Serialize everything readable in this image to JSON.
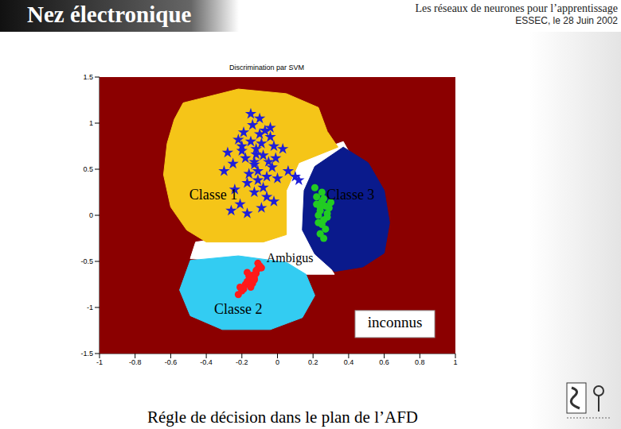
{
  "header": {
    "title": "Nez électronique",
    "subtitle": "Les réseaux de neurones pour l’apprentissage",
    "event": "ESSEC, le 28 Juin 2002"
  },
  "caption": "Régle de décision dans le plan de l’AFD",
  "chart_data": {
    "type": "scatter",
    "title": "Discrimination par SVM",
    "xlim": [
      -1,
      1
    ],
    "xticks": [
      -1,
      -0.8,
      -0.6,
      -0.4,
      -0.2,
      0,
      0.2,
      0.4,
      0.6,
      0.8,
      1
    ],
    "ylim": [
      -1.5,
      1.5
    ],
    "yticks": [
      -1.5,
      -1,
      -0.5,
      0,
      0.5,
      1,
      1.5
    ],
    "background": {
      "label": "inconnus",
      "color": "#8b0000"
    },
    "regions": [
      {
        "label": "Ambigus",
        "color": "#ffffff",
        "polygon": {
          "x": [
            0.1,
            0.37,
            0.41,
            0.23,
            0.19,
            0.32,
            0.14,
            -0.08,
            -0.35,
            -0.49,
            -0.46,
            0.01,
            0.03
          ],
          "y": [
            0.61,
            0.8,
            0.66,
            0.4,
            -0.25,
            -0.64,
            -0.64,
            -0.51,
            -0.49,
            -0.47,
            -0.29,
            -0.16,
            0.35
          ]
        }
      },
      {
        "label": "Classe 2",
        "color": "#33ccf2",
        "polygon": {
          "x": [
            -0.49,
            -0.22,
            0.05,
            0.16,
            0.21,
            0.14,
            -0.04,
            -0.31,
            -0.49,
            -0.55
          ],
          "y": [
            -0.49,
            -0.44,
            -0.51,
            -0.64,
            -0.87,
            -1.11,
            -1.24,
            -1.24,
            -1.09,
            -0.81
          ]
        },
        "points": {
          "color": "#ff1a1a",
          "marker": "circle",
          "x": [
            -0.1,
            -0.12,
            -0.14,
            -0.11,
            -0.16,
            -0.13,
            -0.18,
            -0.15,
            -0.2,
            -0.17,
            -0.12,
            -0.09,
            -0.22,
            -0.14,
            -0.19,
            -0.16,
            -0.11,
            -0.21,
            -0.13,
            -0.17
          ],
          "y": [
            -0.55,
            -0.6,
            -0.65,
            -0.58,
            -0.7,
            -0.68,
            -0.75,
            -0.78,
            -0.82,
            -0.72,
            -0.63,
            -0.57,
            -0.86,
            -0.74,
            -0.8,
            -0.66,
            -0.52,
            -0.78,
            -0.7,
            -0.62
          ]
        }
      },
      {
        "label": "Classe 1",
        "color": "#f5c518",
        "polygon": {
          "x": [
            -0.53,
            -0.22,
            0.05,
            0.23,
            0.28,
            0.34,
            0.12,
            0.05,
            0.05,
            -0.08,
            -0.4,
            -0.51,
            -0.6,
            -0.64,
            -0.62,
            -0.58
          ],
          "y": [
            1.22,
            1.37,
            1.32,
            1.17,
            0.91,
            0.74,
            0.57,
            0.27,
            -0.21,
            -0.29,
            -0.29,
            -0.16,
            0.09,
            0.44,
            0.78,
            1.04
          ]
        },
        "points": {
          "color": "#1f1fd8",
          "marker": "star",
          "x": [
            -0.12,
            -0.08,
            -0.15,
            -0.05,
            -0.1,
            -0.18,
            -0.02,
            -0.13,
            -0.07,
            -0.2,
            -0.11,
            -0.04,
            -0.16,
            -0.09,
            -0.14,
            -0.01,
            -0.22,
            -0.06,
            -0.12,
            -0.17,
            -0.03,
            -0.1,
            -0.25,
            -0.08,
            -0.19,
            0.0,
            -0.13,
            -0.28,
            -0.15,
            -0.06,
            -0.3,
            -0.21,
            -0.11,
            0.03,
            -0.24,
            -0.09,
            -0.17,
            0.06,
            -0.02,
            -0.26,
            -0.13,
            -0.04,
            -0.2,
            0.1,
            0.12
          ],
          "y": [
            0.72,
            0.65,
            0.8,
            0.58,
            0.88,
            0.62,
            0.75,
            0.55,
            0.92,
            0.7,
            0.48,
            0.85,
            0.45,
            0.78,
            0.98,
            0.62,
            0.82,
            0.42,
            0.66,
            0.35,
            0.52,
            1.05,
            0.56,
            0.3,
            0.9,
            0.4,
            0.25,
            0.68,
            1.1,
            0.2,
            0.48,
            0.12,
            0.38,
            0.72,
            0.28,
            0.08,
            0.02,
            0.48,
            0.15,
            0.05,
            0.58,
            0.95,
            0.75,
            0.42,
            0.38
          ]
        }
      },
      {
        "label": "Classe 3",
        "color": "#0a1a8c",
        "polygon": {
          "x": [
            0.21,
            0.37,
            0.51,
            0.6,
            0.63,
            0.6,
            0.48,
            0.32,
            0.21,
            0.14,
            0.15
          ],
          "y": [
            0.53,
            0.74,
            0.57,
            0.27,
            -0.08,
            -0.41,
            -0.56,
            -0.61,
            -0.42,
            -0.16,
            0.27
          ]
        },
        "points": {
          "color": "#22cc22",
          "marker": "circle",
          "x": [
            0.22,
            0.25,
            0.27,
            0.24,
            0.29,
            0.23,
            0.26,
            0.28,
            0.25,
            0.22,
            0.27,
            0.24,
            0.3,
            0.26,
            0.23,
            0.25,
            0.28,
            0.21,
            0.26,
            0.24
          ],
          "y": [
            0.2,
            0.15,
            0.1,
            0.05,
            0.08,
            0.0,
            -0.05,
            0.02,
            -0.1,
            0.12,
            -0.15,
            -0.2,
            0.14,
            0.18,
            -0.08,
            0.25,
            -0.02,
            0.3,
            -0.25,
            0.09
          ]
        }
      }
    ]
  }
}
